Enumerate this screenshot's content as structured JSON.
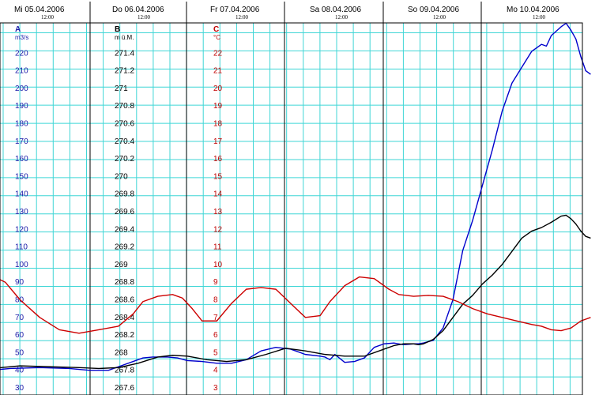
{
  "chart_data": {
    "type": "line",
    "title": "",
    "days": [
      {
        "label": "Mi  05.04.2006",
        "noon": "12:00"
      },
      {
        "label": "Do  06.04.2006",
        "noon": "12:00"
      },
      {
        "label": "Fr  07.04.2006",
        "noon": "12:00"
      },
      {
        "label": "Sa  08.04.2006",
        "noon": "12:00"
      },
      {
        "label": "So  09.04.2006",
        "noon": "12:00"
      },
      {
        "label": "Mo  10.04.2006",
        "noon": "12:00"
      }
    ],
    "xlim": [
      0,
      6
    ],
    "grid": true,
    "axes": [
      {
        "id": "A",
        "name": "A",
        "unit": "m3/s",
        "color": "#1a1aa8",
        "ylim": [
          25,
          230
        ],
        "ticks": [
          "30",
          "40",
          "50",
          "60",
          "70",
          "80",
          "90",
          "100",
          "110",
          "120",
          "130",
          "140",
          "150",
          "160",
          "170",
          "180",
          "190",
          "200",
          "210",
          "220"
        ]
      },
      {
        "id": "B",
        "name": "B",
        "unit": "m ü.M.",
        "color": "#000000",
        "ylim": [
          267.5,
          271.6
        ],
        "ticks": [
          "267.6",
          "267.8",
          "268",
          "268.2",
          "268.4",
          "268.6",
          "268.8",
          "269",
          "269.2",
          "269.4",
          "269.6",
          "269.8",
          "270",
          "270.2",
          "270.4",
          "270.6",
          "270.8",
          "271",
          "271.2",
          "271.4"
        ]
      },
      {
        "id": "C",
        "name": "C",
        "unit": "°C",
        "color": "#c00000",
        "ylim": [
          2.5,
          23
        ],
        "ticks": [
          "3",
          "4",
          "5",
          "6",
          "7",
          "8",
          "9",
          "10",
          "11",
          "12",
          "13",
          "14",
          "15",
          "16",
          "17",
          "18",
          "19",
          "20",
          "21",
          "22"
        ]
      }
    ],
    "series": [
      {
        "axis": "A",
        "color": "#0000cc",
        "x": [
          0,
          0.2,
          0.5,
          0.8,
          1.0,
          1.2,
          1.3,
          1.45,
          1.55,
          1.65,
          1.8,
          1.9,
          2.0,
          2.15,
          2.3,
          2.45,
          2.6,
          2.75,
          2.9,
          3.05,
          3.2,
          3.35,
          3.4,
          3.45,
          3.5,
          3.6,
          3.7,
          3.8,
          3.9,
          4.0,
          4.1,
          4.2,
          4.3,
          4.35,
          4.4,
          4.5,
          4.6,
          4.7,
          4.8,
          4.9,
          5.0,
          5.1,
          5.2,
          5.3,
          5.4,
          5.5,
          5.6,
          5.65,
          5.7,
          5.8,
          5.85,
          5.9,
          5.95,
          6.0,
          6.05,
          6.1
        ],
        "y": [
          40,
          41,
          41.5,
          41,
          40,
          40,
          42,
          45,
          47,
          47.5,
          47.5,
          47,
          45.5,
          45,
          44,
          44,
          46,
          51,
          53,
          52,
          49,
          48,
          47.5,
          46,
          49,
          44.5,
          45,
          47,
          53,
          55,
          55.5,
          54.5,
          55,
          55,
          55.5,
          57,
          64,
          80,
          108,
          125,
          145,
          165,
          187,
          203,
          212,
          221,
          225,
          224,
          230,
          235,
          237,
          233,
          228,
          218,
          210,
          208
        ]
      },
      {
        "axis": "B",
        "color": "#000000",
        "x": [
          0,
          0.3,
          0.6,
          0.9,
          1.1,
          1.3,
          1.5,
          1.7,
          1.85,
          2.0,
          2.2,
          2.4,
          2.6,
          2.8,
          3.0,
          3.2,
          3.4,
          3.6,
          3.8,
          4.0,
          4.1,
          4.2,
          4.3,
          4.35,
          4.4,
          4.5,
          4.6,
          4.7,
          4.8,
          4.9,
          5.0,
          5.1,
          5.2,
          5.3,
          5.4,
          5.5,
          5.6,
          5.7,
          5.8,
          5.85,
          5.9,
          5.95,
          6.0,
          6.05,
          6.1
        ],
        "y": [
          267.82,
          267.85,
          267.84,
          267.83,
          267.82,
          267.83,
          267.88,
          267.95,
          267.97,
          267.96,
          267.92,
          267.9,
          267.92,
          267.98,
          268.05,
          268.02,
          267.98,
          267.96,
          267.96,
          268.04,
          268.08,
          268.1,
          268.1,
          268.09,
          268.1,
          268.15,
          268.25,
          268.4,
          268.55,
          268.65,
          268.78,
          268.88,
          269.0,
          269.15,
          269.3,
          269.38,
          269.42,
          269.48,
          269.55,
          269.56,
          269.52,
          269.46,
          269.38,
          269.32,
          269.3
        ]
      },
      {
        "axis": "C",
        "color": "#cc0000",
        "x": [
          0,
          0.15,
          0.3,
          0.5,
          0.7,
          0.9,
          1.1,
          1.3,
          1.45,
          1.55,
          1.7,
          1.85,
          1.95,
          2.05,
          2.15,
          2.3,
          2.45,
          2.6,
          2.75,
          2.9,
          3.05,
          3.2,
          3.35,
          3.45,
          3.6,
          3.75,
          3.9,
          4.05,
          4.15,
          4.3,
          4.45,
          4.6,
          4.75,
          4.9,
          5.05,
          5.2,
          5.35,
          5.5,
          5.6,
          5.7,
          5.8,
          5.9,
          6.0,
          6.1
        ],
        "y": [
          9.4,
          9.0,
          8.0,
          7.0,
          6.3,
          6.1,
          6.3,
          6.5,
          7.2,
          7.9,
          8.2,
          8.3,
          8.1,
          7.5,
          6.8,
          6.8,
          7.8,
          8.6,
          8.7,
          8.6,
          7.8,
          7.0,
          7.1,
          7.9,
          8.8,
          9.3,
          9.2,
          8.6,
          8.3,
          8.2,
          8.25,
          8.2,
          7.9,
          7.5,
          7.2,
          7.0,
          6.8,
          6.6,
          6.5,
          6.3,
          6.25,
          6.4,
          6.8,
          7.0
        ]
      }
    ]
  }
}
